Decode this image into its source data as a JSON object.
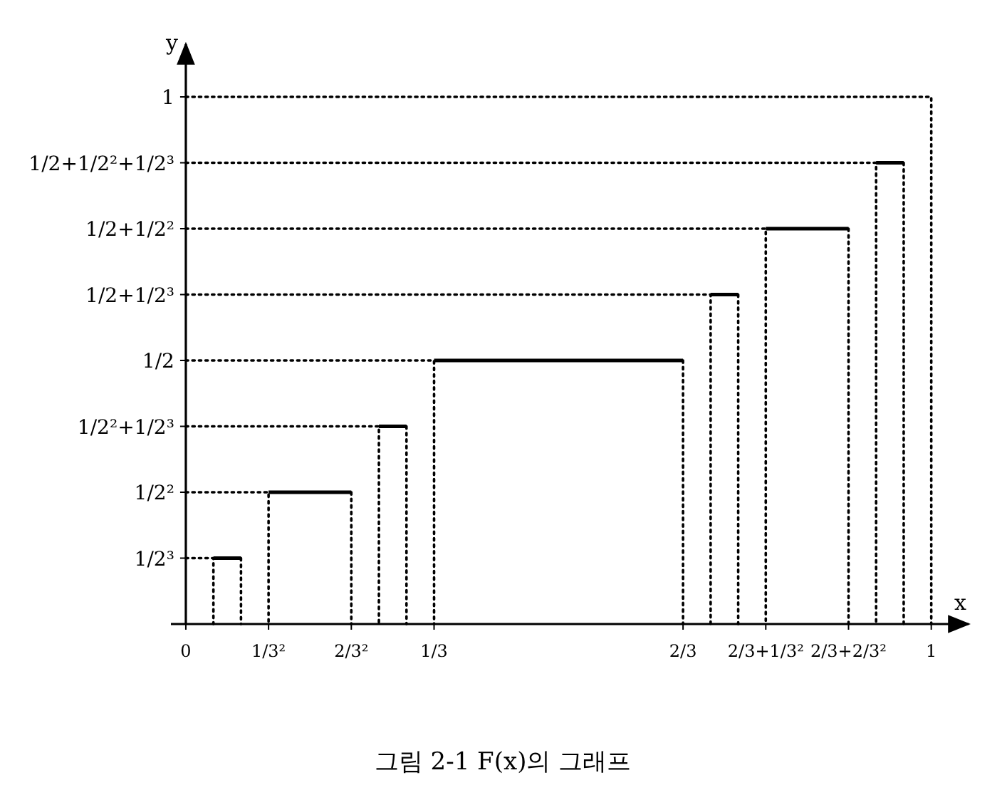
{
  "chart_data": {
    "type": "line",
    "title": "그림 2-1 F(x)의 그래프",
    "xlabel": "x",
    "ylabel": "y",
    "xlim": [
      -0.02,
      1.05
    ],
    "ylim": [
      0,
      1.1
    ],
    "xticks": [
      {
        "value": 0,
        "label": "0"
      },
      {
        "value": 0.111,
        "label": "1/3²"
      },
      {
        "value": 0.222,
        "label": "2/3²"
      },
      {
        "value": 0.333,
        "label": "1/3"
      },
      {
        "value": 0.667,
        "label": "2/3"
      },
      {
        "value": 0.778,
        "label": "2/3+1/3²"
      },
      {
        "value": 0.889,
        "label": "2/3+2/3²"
      },
      1
    ],
    "yticks": [
      {
        "value": 0.125,
        "label": "1/2³"
      },
      {
        "value": 0.25,
        "label": "1/2²"
      },
      {
        "value": 0.375,
        "label": "1/2²+1/2³"
      },
      {
        "value": 0.5,
        "label": "1/2"
      },
      {
        "value": 0.625,
        "label": "1/2+1/2³"
      },
      {
        "value": 0.75,
        "label": "1/2+1/2²"
      },
      {
        "value": 0.875,
        "label": "1/2+1/2²+1/2³"
      },
      1
    ],
    "marker": "none",
    "series": [
      {
        "color": "#000000",
        "line_style": "solid",
        "x": [
          0.037,
          0.074,
          null,
          0.111,
          0.222,
          null,
          0.259,
          0.296,
          null,
          0.333,
          0.667,
          null,
          0.704,
          0.741,
          null,
          0.778,
          0.889,
          null,
          0.926,
          0.963
        ],
        "values": [
          0.125,
          0.125,
          null,
          0.25,
          0.25,
          null,
          0.375,
          0.375,
          null,
          0.5,
          0.5,
          null,
          0.625,
          0.625,
          null,
          0.75,
          0.75,
          null,
          0.875,
          0.875
        ]
      },
      {
        "color": "#000000",
        "line_style": "dotted",
        "x": [
          0,
          0.037,
          0.037,
          null,
          0.074,
          0.074,
          null,
          0,
          0.111,
          0.111,
          null,
          0.222,
          0.222,
          null,
          0,
          0.259,
          0.259,
          null,
          0.296,
          0.296,
          null,
          0,
          0.333,
          0.333,
          null,
          0.667,
          0.667,
          null,
          0,
          0.704,
          0.704,
          null,
          0.741,
          0.741,
          null,
          0,
          0.778,
          0.778,
          null,
          0.889,
          0.889,
          null,
          0,
          0.926,
          0.926,
          null,
          0.963,
          0.963,
          null,
          0,
          1,
          1
        ],
        "values": [
          0.125,
          0.125,
          0,
          null,
          0.125,
          0,
          null,
          0.25,
          0.25,
          0,
          null,
          0.25,
          0,
          null,
          0.375,
          0.375,
          0,
          null,
          0.375,
          0,
          null,
          0.5,
          0.5,
          0,
          null,
          0.5,
          0,
          null,
          0.625,
          0.625,
          0,
          null,
          0.625,
          0,
          null,
          0.75,
          0.75,
          0,
          null,
          0.75,
          0,
          null,
          0.875,
          0.875,
          0,
          null,
          0.875,
          0,
          null,
          1,
          1,
          0
        ]
      }
    ]
  }
}
